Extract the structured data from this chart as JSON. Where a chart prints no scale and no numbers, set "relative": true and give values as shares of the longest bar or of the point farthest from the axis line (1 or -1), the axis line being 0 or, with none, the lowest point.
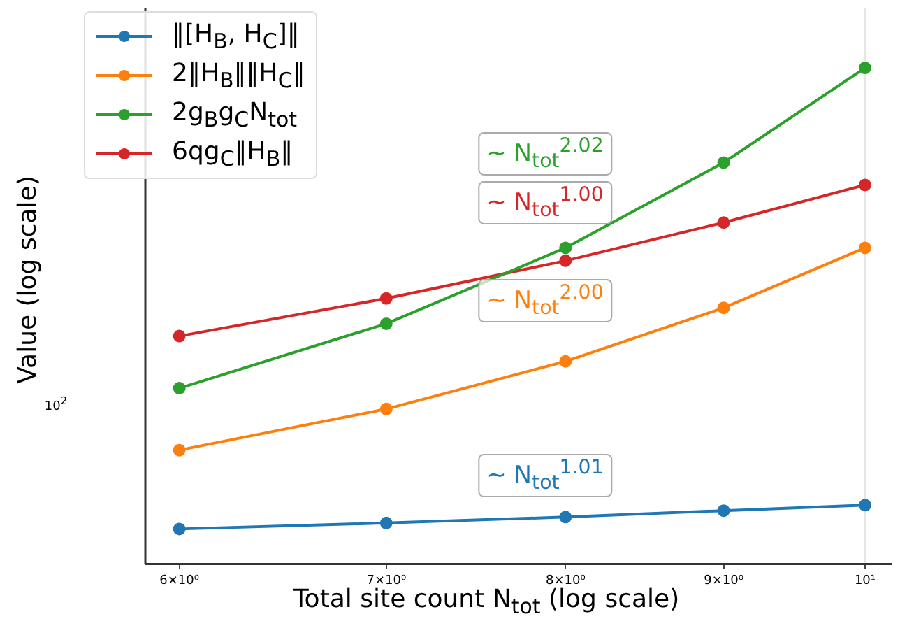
{
  "chart_data": {
    "type": "line",
    "xlabel": "Total site count N$_{tot}$ (log scale)",
    "ylabel": "Value (log scale)",
    "x": [
      6,
      7,
      8,
      9,
      10
    ],
    "series": [
      {
        "name": "‖[H$_{B}$, H$_{C}$]‖",
        "color": "#1f77b4",
        "values": [
          0.07,
          0.082,
          0.094,
          0.107,
          0.118
        ]
      },
      {
        "name": "2‖H$_{B}$‖‖H$_{C}$‖",
        "color": "#ff7f0e",
        "values": [
          0.229,
          0.312,
          0.408,
          0.516,
          0.637
        ]
      },
      {
        "name": "2g$_{B}$g$_{C}$N$_{tot}$",
        "color": "#2ca02c",
        "values": [
          0.354,
          0.484,
          0.637,
          0.809,
          1
        ]
      },
      {
        "name": "6qg$_{C}$‖H$_{B}$‖",
        "color": "#d62728",
        "values": [
          0.459,
          0.535,
          0.611,
          0.688,
          0.764
        ]
      }
    ],
    "relative": true,
    "annotations": [
      "∼ N$_{tot}$$^{1.01}$",
      "∼ N$_{tot}$$^{2.00}$",
      "∼ N$_{tot}$$^{2.02}$",
      "∼ N$_{tot}$$^{1.00}$",
      "10$^{2}$"
    ],
    "log": "x",
    "xlim": [
      5.85,
      10.2
    ],
    "xticks": [
      {
        "value": 6,
        "label": "6×10⁰"
      },
      {
        "value": 7,
        "label": "7×10⁰"
      },
      {
        "value": 8,
        "label": "8×10⁰"
      },
      {
        "value": 9,
        "label": "9×10⁰"
      },
      {
        "value": 10,
        "label": "10¹"
      }
    ],
    "grid": true,
    "legend": "top left",
    "marker": "circle",
    "line_style": "solid"
  }
}
